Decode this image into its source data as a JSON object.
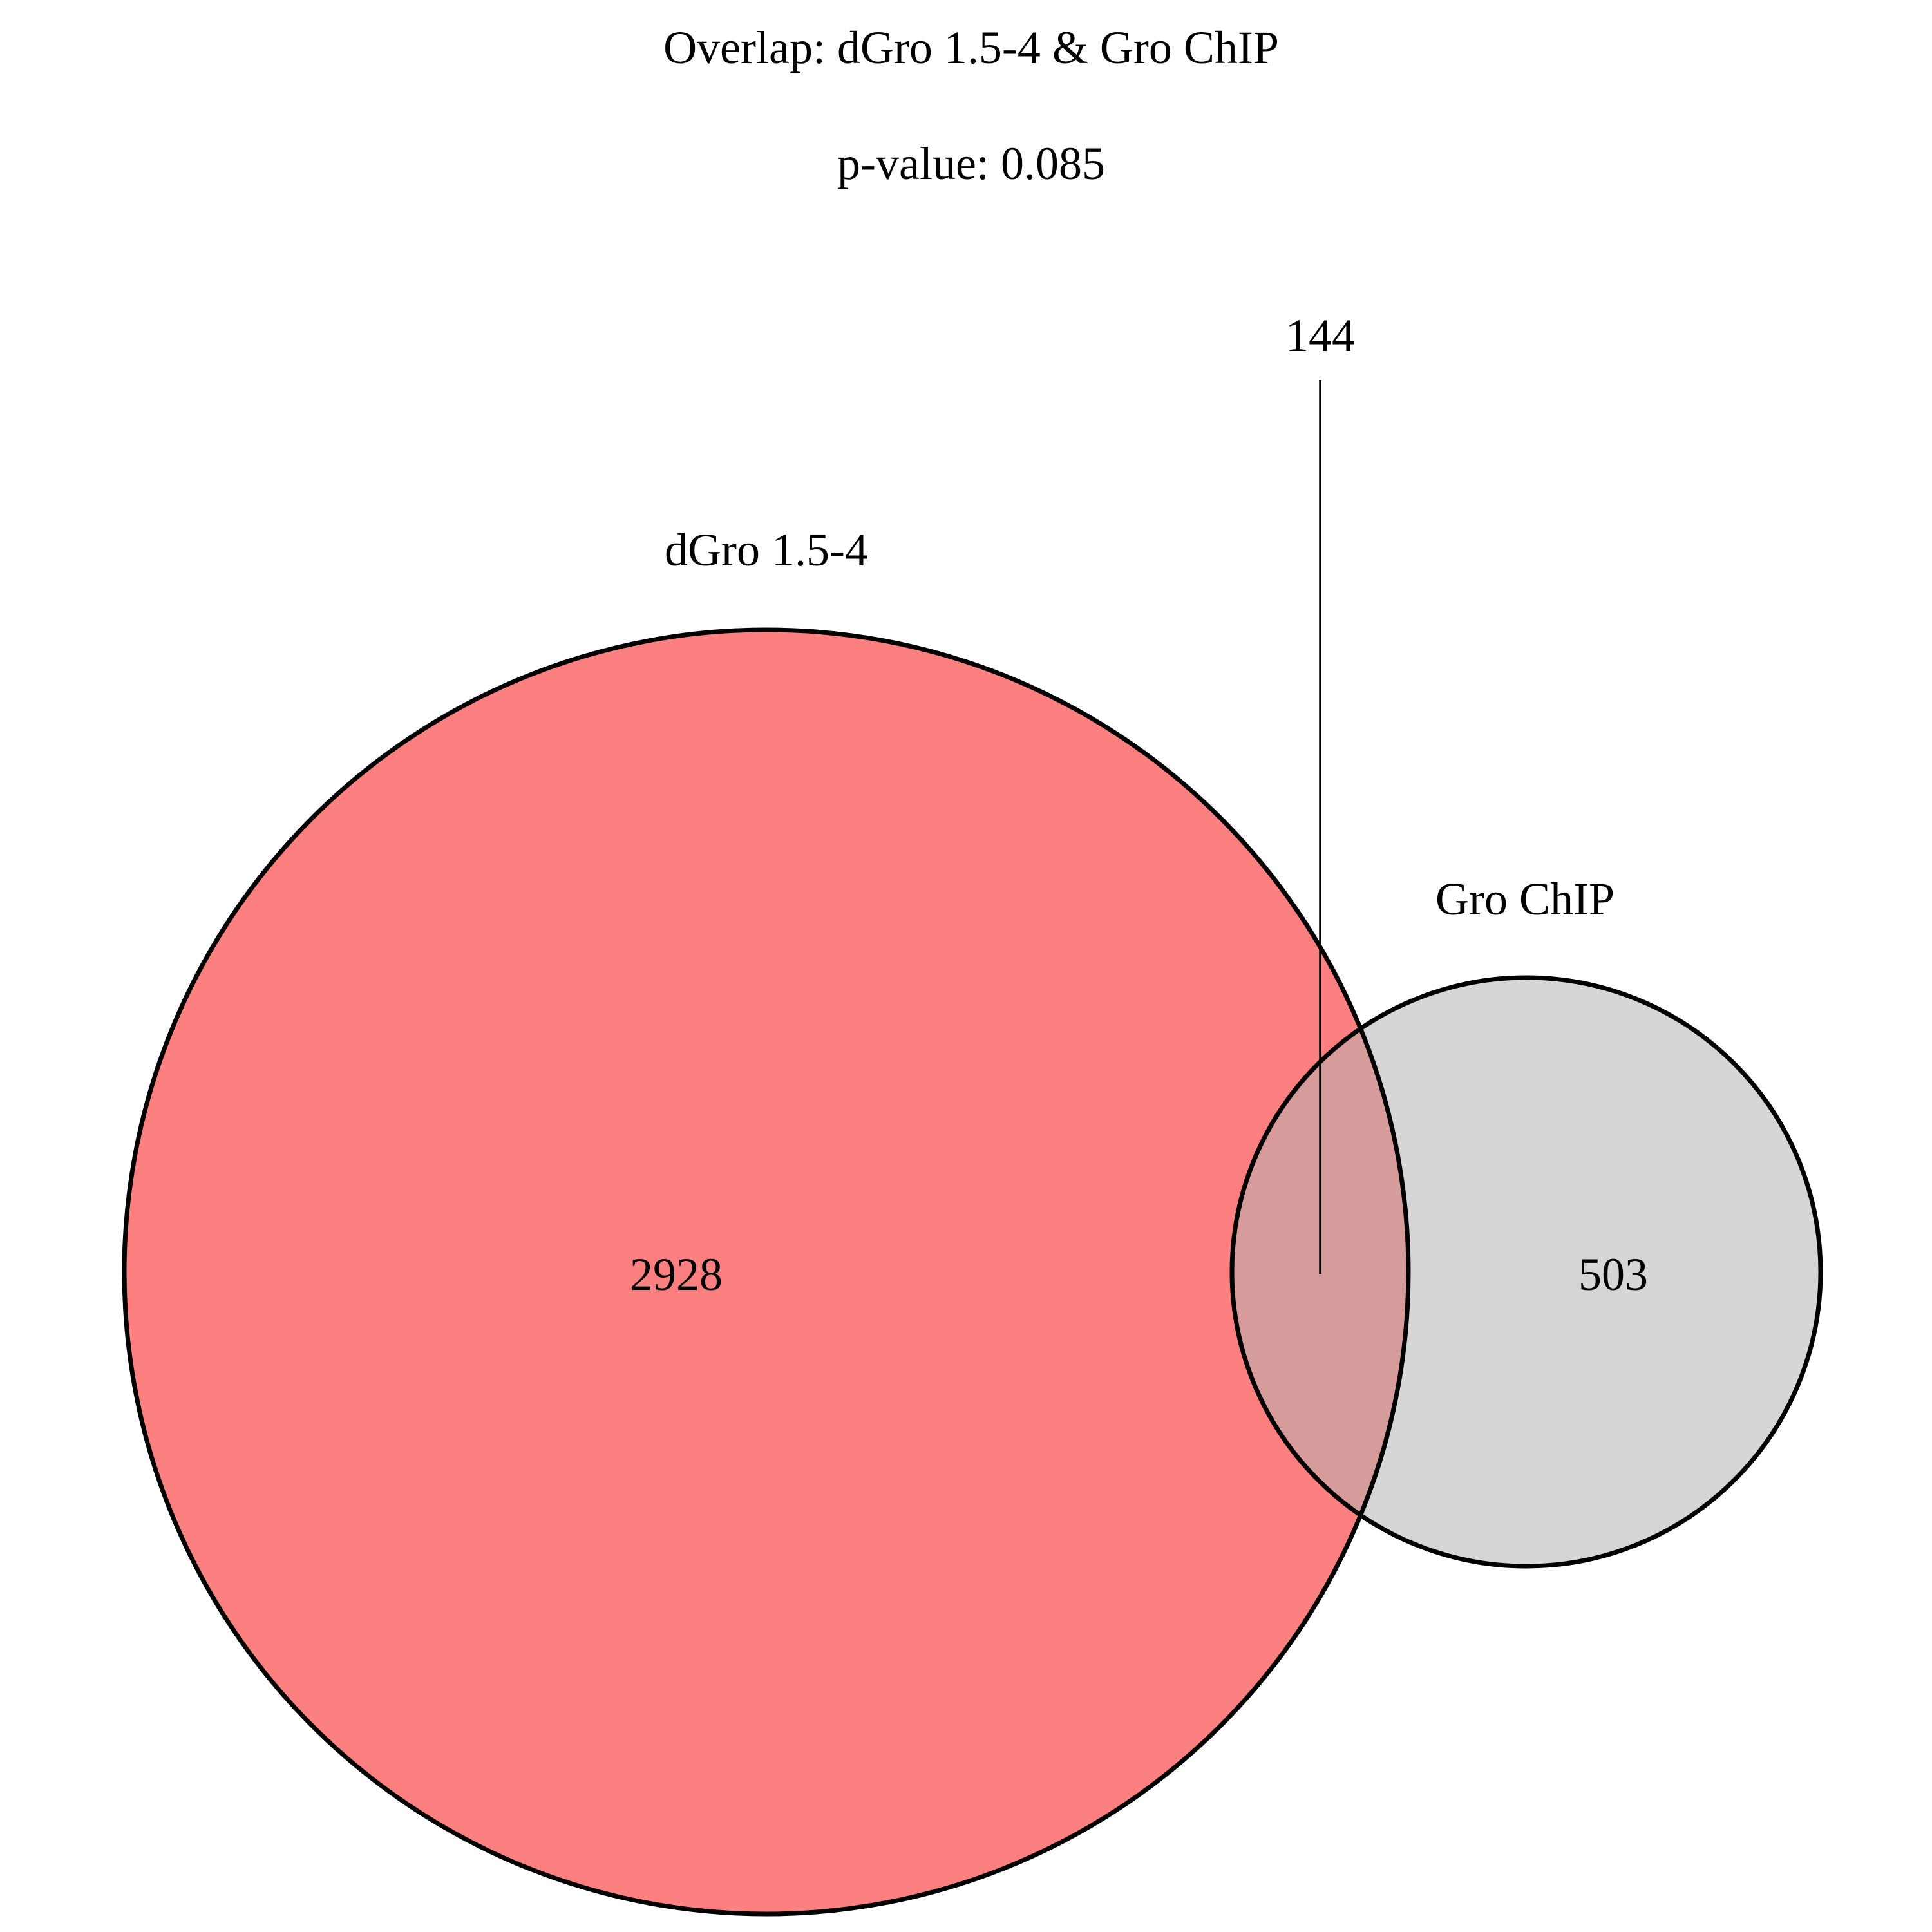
{
  "title": "Overlap: dGro 1.5-4 & Gro ChIP",
  "subtitle": "p-value: 0.085",
  "sets": [
    {
      "name": "dGro 1.5-4",
      "only_count": "2928",
      "fill": "#fc8080"
    },
    {
      "name": "Gro ChIP",
      "only_count": "503",
      "fill": "#d6d6d6"
    }
  ],
  "intersection": {
    "count": "144",
    "fill": "#d69b9b"
  },
  "outline_color": "#000000"
}
